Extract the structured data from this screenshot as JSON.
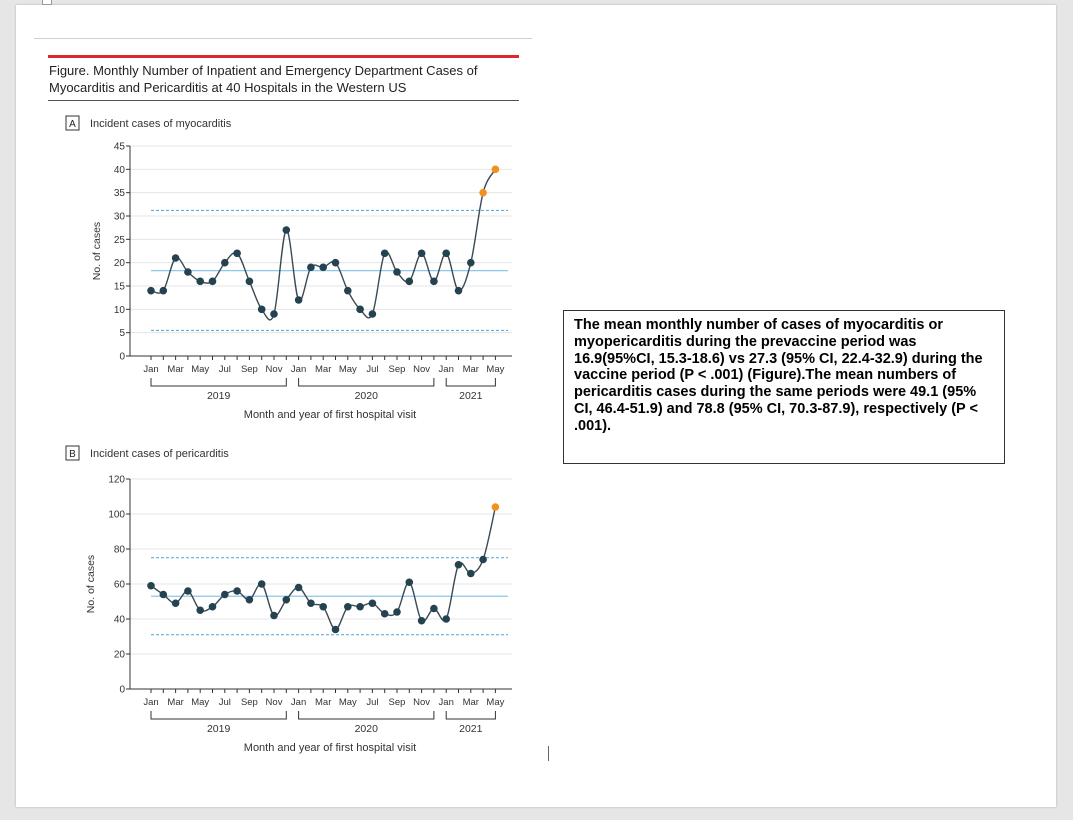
{
  "figure": {
    "title": "Figure. Monthly Number of Inpatient and Emergency Department Cases of Myocarditis and Pericarditis at 40 Hospitals in the Western US"
  },
  "text_box": {
    "text": "The mean monthly number of cases of myocarditis or myopericarditis during the prevaccine period was 16.9(95%CI, 15.3-18.6) vs 27.3 (95% CI, 22.4-32.9) during the vaccine period (P < .001) (Figure).The mean numbers of pericarditis cases during the same periods were 49.1 (95% CI, 46.4-51.9) and 78.8 (95% CI, 70.3-87.9), respectively (P < .001)."
  },
  "colors": {
    "line": "#3a4a55",
    "point": "#24424f",
    "vaccine_point": "#f0921e",
    "mean_line": "#8cc8e8",
    "limit_line": "#4aa3d8",
    "title_bar": "#e0262d"
  },
  "chart_data": [
    {
      "type": "line",
      "panel_letter": "A",
      "panel_title": "Incident cases of myocarditis",
      "ylabel": "No. of cases",
      "xlabel": "Month and year of first hospital visit",
      "ylim": [
        0,
        45
      ],
      "yticks": [
        0,
        5,
        10,
        15,
        20,
        25,
        30,
        35,
        40,
        45
      ],
      "x_tick_labels": [
        "Jan",
        "Mar",
        "May",
        "Jul",
        "Sep",
        "Nov",
        "Jan",
        "Mar",
        "May",
        "Jul",
        "Sep",
        "Nov",
        "Jan",
        "Mar",
        "May"
      ],
      "years": [
        "2019",
        "2020",
        "2021"
      ],
      "values": [
        14,
        14,
        21,
        18,
        16,
        16,
        20,
        22,
        16,
        10,
        9,
        27,
        12,
        19,
        19,
        20,
        14,
        10,
        9,
        22,
        18,
        16,
        22,
        16,
        22,
        14,
        20,
        35,
        40
      ],
      "vaccine_start_index": 27,
      "mean": 18.3,
      "upper_limit": 31.2,
      "lower_limit": 5.5
    },
    {
      "type": "line",
      "panel_letter": "B",
      "panel_title": "Incident cases of pericarditis",
      "ylabel": "No. of cases",
      "xlabel": "Month and year of first hospital visit",
      "ylim": [
        0,
        120
      ],
      "yticks": [
        0,
        20,
        40,
        60,
        80,
        100,
        120
      ],
      "x_tick_labels": [
        "Jan",
        "Mar",
        "May",
        "Jul",
        "Sep",
        "Nov",
        "Jan",
        "Mar",
        "May",
        "Jul",
        "Sep",
        "Nov",
        "Jan",
        "Mar",
        "May"
      ],
      "years": [
        "2019",
        "2020",
        "2021"
      ],
      "values": [
        59,
        54,
        49,
        56,
        45,
        47,
        54,
        56,
        51,
        60,
        42,
        51,
        58,
        49,
        47,
        34,
        47,
        47,
        49,
        43,
        44,
        61,
        39,
        46,
        40,
        71,
        66,
        74,
        104
      ],
      "vaccine_start_index": 28,
      "mean": 53,
      "upper_limit": 75,
      "lower_limit": 31
    }
  ]
}
